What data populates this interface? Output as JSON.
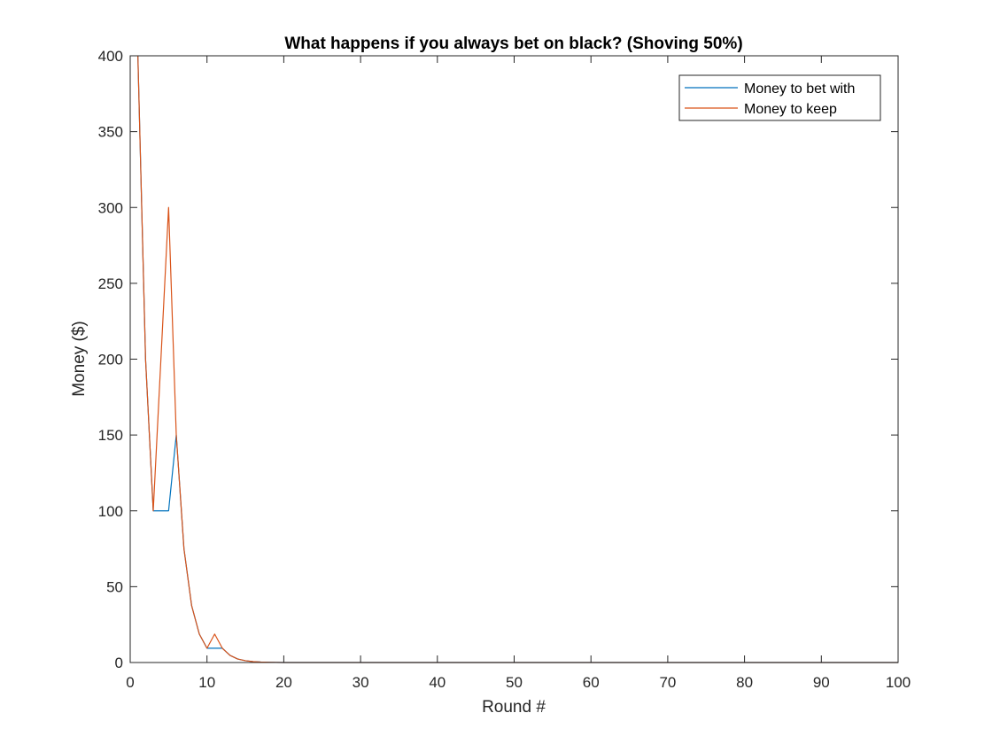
{
  "chart_data": {
    "type": "line",
    "title": "What happens if you always bet on black? (Shoving 50%)",
    "xlabel": "Round #",
    "ylabel": "Money ($)",
    "xlim": [
      0,
      100
    ],
    "ylim": [
      0,
      400
    ],
    "xticks": [
      0,
      10,
      20,
      30,
      40,
      50,
      60,
      70,
      80,
      90,
      100
    ],
    "yticks": [
      0,
      50,
      100,
      150,
      200,
      250,
      300,
      350,
      400
    ],
    "grid": false,
    "legend_position": "top-right",
    "series": [
      {
        "name": "Money to bet with",
        "color": "#0072BD",
        "x": [
          1,
          2,
          3,
          4,
          5,
          6,
          7,
          8,
          9,
          10,
          11,
          12,
          13,
          14,
          15,
          16,
          17,
          18,
          19,
          20,
          100
        ],
        "y": [
          400,
          200,
          100,
          100,
          100,
          150,
          75,
          37.5,
          18.75,
          9.4,
          9.4,
          9.4,
          4.7,
          2.3,
          1.2,
          0.6,
          0.3,
          0.15,
          0.07,
          0,
          0
        ]
      },
      {
        "name": "Money to keep",
        "color": "#D95319",
        "x": [
          1,
          2,
          3,
          4,
          5,
          6,
          7,
          8,
          9,
          10,
          11,
          12,
          13,
          14,
          15,
          16,
          17,
          18,
          19,
          20,
          100
        ],
        "y": [
          400,
          200,
          100,
          200,
          300,
          150,
          75,
          37.5,
          18.75,
          9.4,
          18.75,
          9.4,
          4.7,
          2.3,
          1.2,
          0.6,
          0.3,
          0.15,
          0.07,
          0,
          0
        ]
      }
    ]
  }
}
